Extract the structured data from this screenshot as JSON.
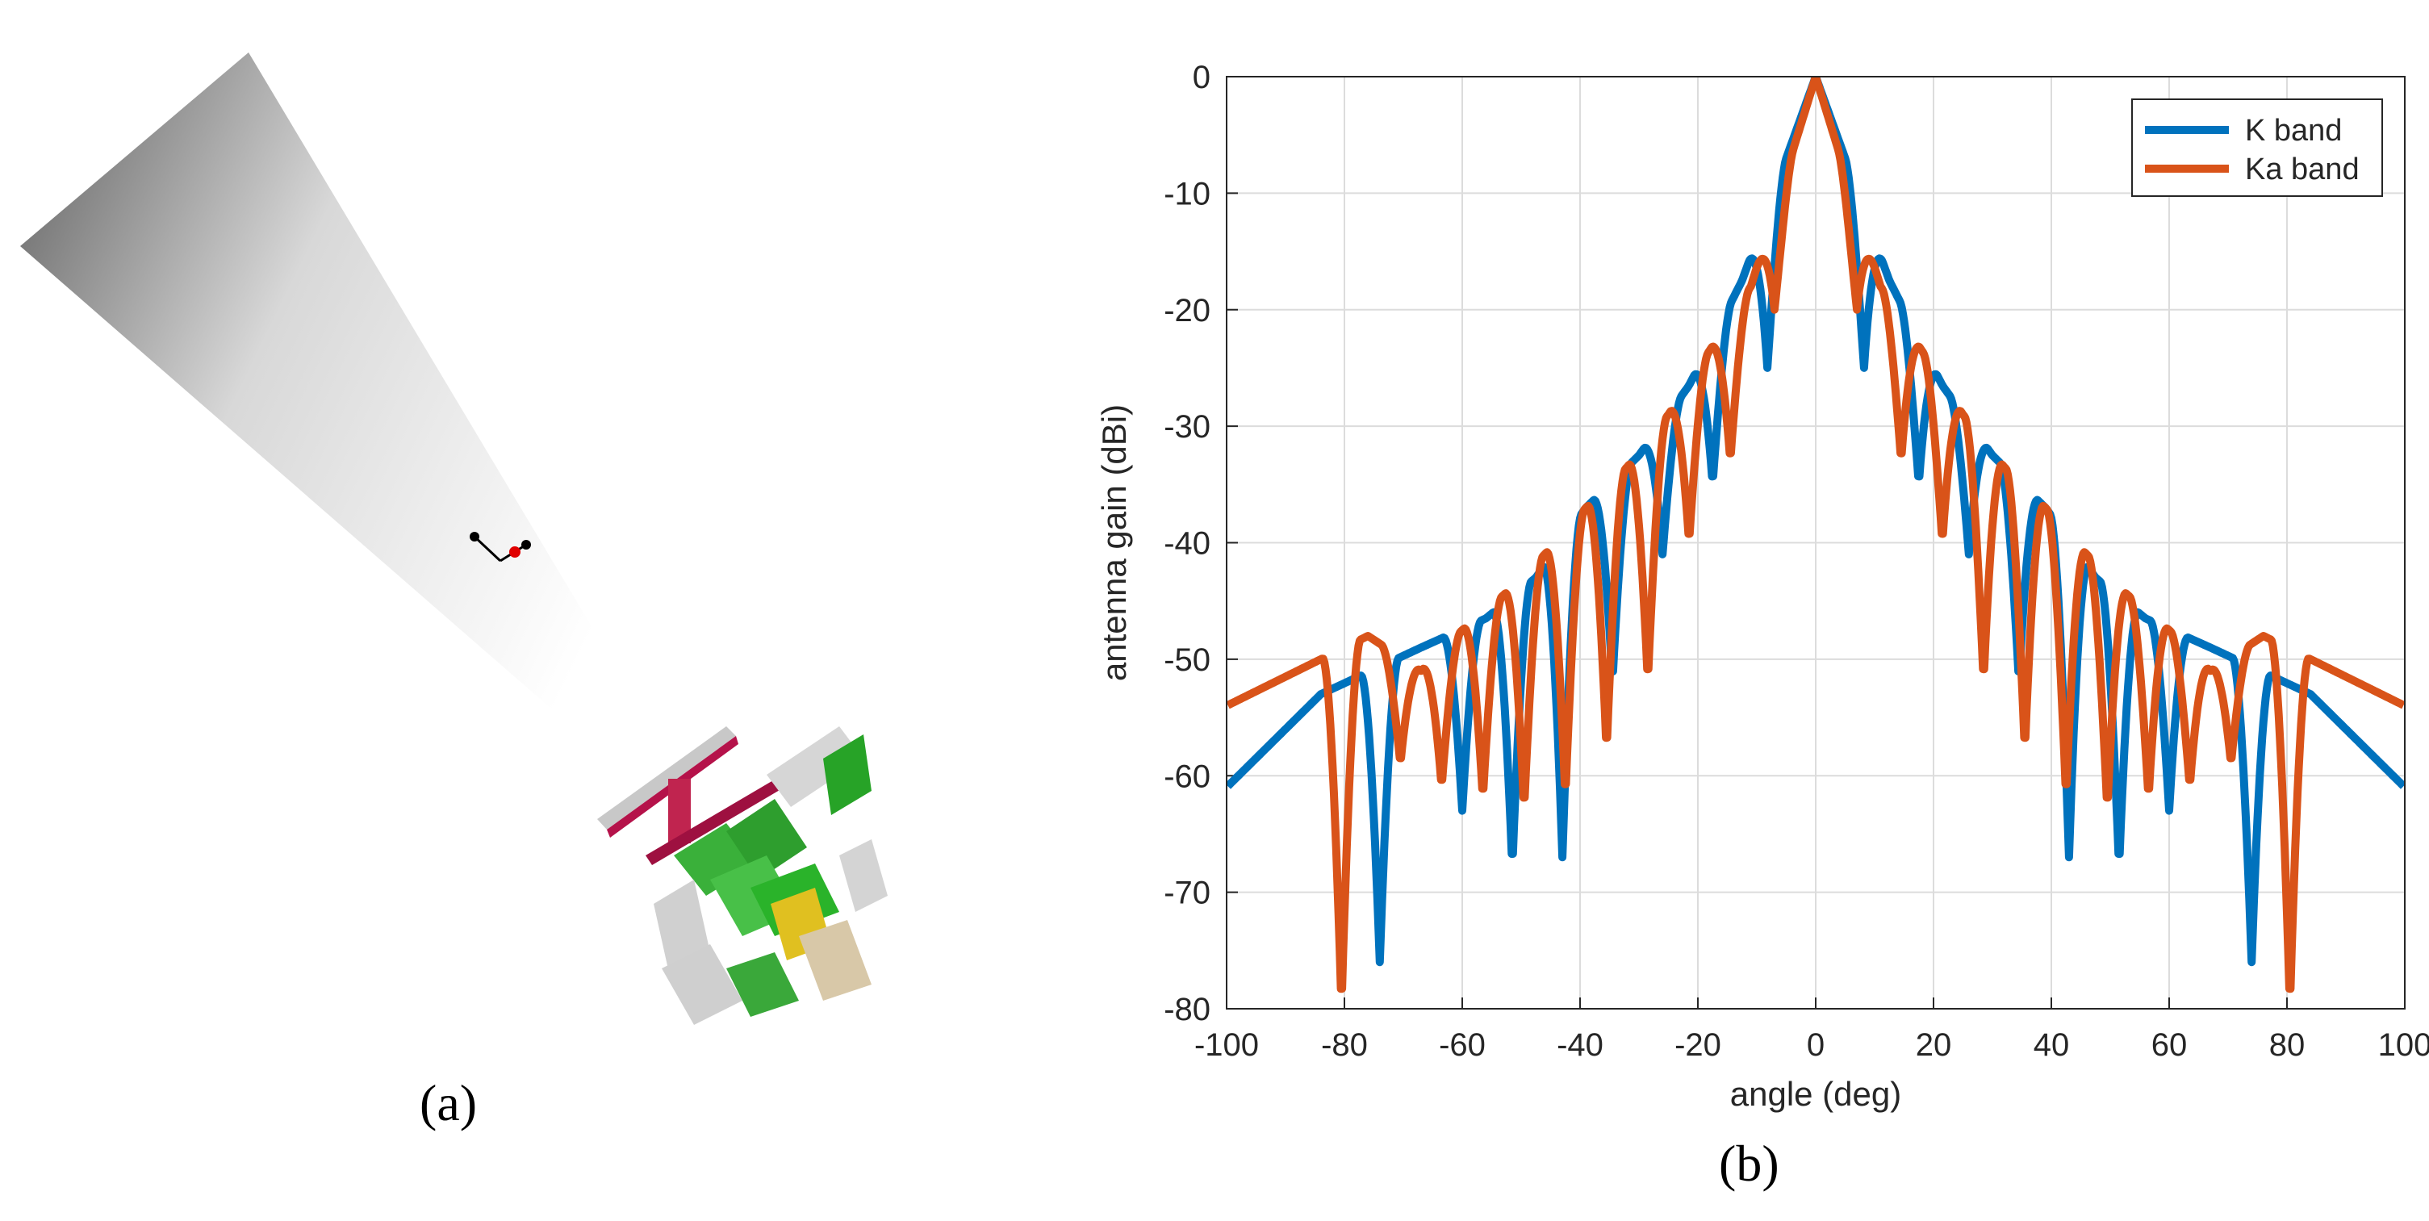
{
  "panel_a": {
    "label": "(a)"
  },
  "panel_b": {
    "label": "(b)"
  },
  "colors": {
    "k_band": "#0072BD",
    "ka_band": "#D95319",
    "grid": "#dcdcdc",
    "axis": "#262626"
  },
  "chart_data": {
    "type": "line",
    "xlabel": "angle (deg)",
    "ylabel": "antenna gain (dBi)",
    "xlim": [
      -100,
      100
    ],
    "ylim": [
      -80,
      0
    ],
    "xticks": [
      -100,
      -80,
      -60,
      -40,
      -20,
      0,
      20,
      40,
      60,
      80,
      100
    ],
    "yticks": [
      0,
      -10,
      -20,
      -30,
      -40,
      -50,
      -60,
      -70,
      -80
    ],
    "grid": true,
    "legend_position": "top-right",
    "series": [
      {
        "name": "K band",
        "color": "#0072BD",
        "null_angles": [
          8.2,
          17.5,
          26.0,
          34.5,
          43.0,
          51.5,
          60.0,
          74.0
        ],
        "null_depths": [
          -25,
          -35,
          -41,
          -52,
          -67,
          -68,
          -63,
          -76
        ],
        "lobe_peaks": [
          [
            0,
            0
          ],
          [
            12.5,
            -17.5
          ],
          [
            21.5,
            -26.5
          ],
          [
            30,
            -32.5
          ],
          [
            39,
            -37
          ],
          [
            47.5,
            -43
          ],
          [
            56,
            -46.5
          ],
          [
            67,
            -49
          ],
          [
            84,
            -53
          ],
          [
            100,
            -61
          ]
        ]
      },
      {
        "name": "Ka band",
        "color": "#D95319",
        "null_angles": [
          7.0,
          14.5,
          21.5,
          28.5,
          35.5,
          42.5,
          49.5,
          56.5,
          63.5,
          70.5,
          80.5
        ],
        "null_depths": [
          -20,
          -33,
          -40,
          -52,
          -58,
          -62,
          -63,
          -62,
          -61,
          -59,
          -80
        ],
        "lobe_peaks": [
          [
            0,
            0
          ],
          [
            11,
            -18
          ],
          [
            18,
            -23.5
          ],
          [
            25,
            -29
          ],
          [
            32,
            -33.5
          ],
          [
            39,
            -37
          ],
          [
            46,
            -41
          ],
          [
            53,
            -44.5
          ],
          [
            60,
            -47.5
          ],
          [
            67,
            -51
          ],
          [
            76,
            -48
          ],
          [
            92,
            -52
          ],
          [
            100,
            -54
          ]
        ]
      }
    ]
  }
}
